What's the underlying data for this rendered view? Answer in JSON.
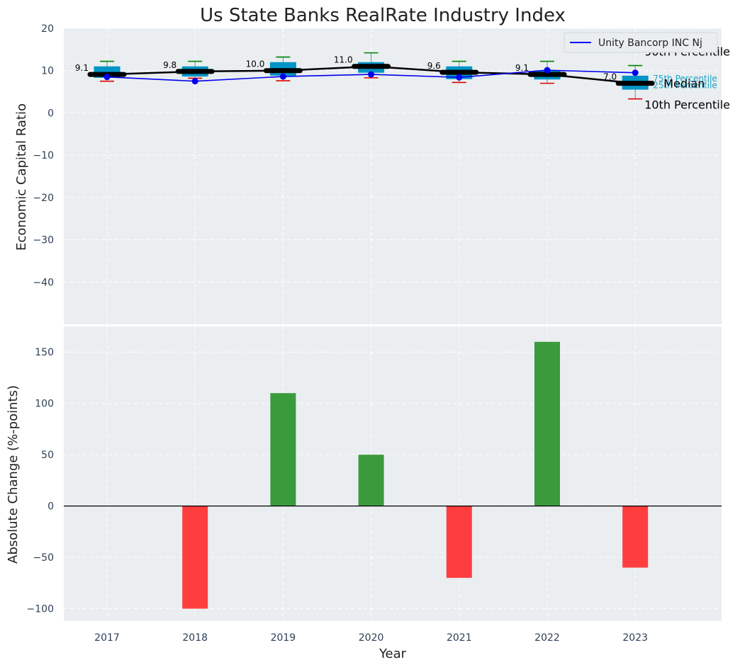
{
  "chart_data": [
    {
      "type": "box",
      "title": "Us State Banks RealRate Industry Index",
      "xlabel": "",
      "ylabel": "Economic Capital Ratio",
      "ylim": [
        -50,
        20
      ],
      "yticks": [
        -40,
        -30,
        -20,
        -10,
        0,
        10,
        20
      ],
      "categories": [
        "2017",
        "2018",
        "2019",
        "2020",
        "2021",
        "2022",
        "2023"
      ],
      "boxes": [
        {
          "year": "2017",
          "p10": 7.5,
          "p25": 8.3,
          "median": 9.1,
          "p75": 11.0,
          "p90": 12.2
        },
        {
          "year": "2018",
          "p10": 8.2,
          "p25": 8.6,
          "median": 9.8,
          "p75": 11.0,
          "p90": 12.2
        },
        {
          "year": "2019",
          "p10": 7.6,
          "p25": 8.8,
          "median": 10.0,
          "p75": 12.0,
          "p90": 13.2
        },
        {
          "year": "2020",
          "p10": 8.3,
          "p25": 9.5,
          "median": 11.0,
          "p75": 12.0,
          "p90": 14.2
        },
        {
          "year": "2021",
          "p10": 7.2,
          "p25": 8.0,
          "median": 9.6,
          "p75": 11.0,
          "p90": 12.2
        },
        {
          "year": "2022",
          "p10": 7.0,
          "p25": 7.9,
          "median": 9.1,
          "p75": 10.0,
          "p90": 12.2
        },
        {
          "year": "2023",
          "p10": 3.3,
          "p25": 5.5,
          "median": 7.0,
          "p75": 8.8,
          "p90": 11.2
        }
      ],
      "median_labels": [
        "9.1",
        "9.8",
        "10.0",
        "11.0",
        "9.6",
        "9.1",
        "7.0"
      ],
      "series": [
        {
          "name": "Unity Bancorp INC Nj",
          "color": "#0000ee",
          "values": [
            8.5,
            7.5,
            8.6,
            9.1,
            8.4,
            10.1,
            9.5
          ]
        }
      ],
      "legend": {
        "position": "top-right",
        "entries": [
          "Unity Bancorp INC Nj"
        ]
      },
      "annotations": {
        "p90": "90th Percentile",
        "p75": "75th Percentile",
        "median": "Median",
        "p25": "25th Percentile",
        "p10": "10th Percentile"
      },
      "colors": {
        "box": "#0094c6",
        "median": "#000000",
        "whisker_top": "#008000",
        "whisker_bottom": "#e00000",
        "company": "#0000ee",
        "background": "#eaeef0"
      }
    },
    {
      "type": "bar",
      "xlabel": "Year",
      "ylabel": "Absolute Change (%-points)",
      "ylim": [
        -112,
        175
      ],
      "yticks": [
        -100,
        -50,
        0,
        50,
        100,
        150
      ],
      "categories": [
        "2017",
        "2018",
        "2019",
        "2020",
        "2021",
        "2022",
        "2023"
      ],
      "values": [
        0,
        -100,
        110,
        50,
        -70,
        160,
        -60
      ],
      "colors": {
        "positive": "#3a9b3c",
        "negative": "#fe3e3e"
      }
    }
  ]
}
